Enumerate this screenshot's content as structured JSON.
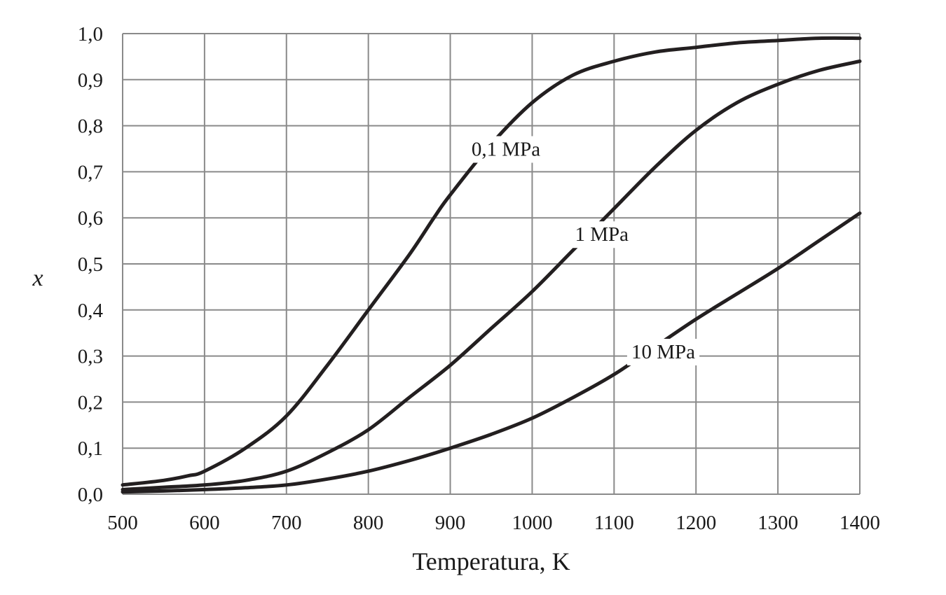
{
  "chart_data": {
    "type": "line",
    "title": "",
    "xlabel": "Temperatura, K",
    "ylabel": "x",
    "xlim": [
      500,
      1400
    ],
    "ylim": [
      0,
      1
    ],
    "grid": true,
    "legend": "none",
    "x_ticks": [
      500,
      600,
      700,
      800,
      900,
      1000,
      1100,
      1200,
      1300,
      1400
    ],
    "x_tick_labels": [
      "500",
      "600",
      "700",
      "800",
      "900",
      "1000",
      "1100",
      "1200",
      "1300",
      "1400"
    ],
    "y_ticks": [
      0,
      0.1,
      0.2,
      0.3,
      0.4,
      0.5,
      0.6,
      0.7,
      0.8,
      0.9,
      1.0
    ],
    "y_tick_labels": [
      "0,0",
      "0,1",
      "0,2",
      "0,3",
      "0,4",
      "0,5",
      "0,6",
      "0,7",
      "0,8",
      "0,9",
      "1,0"
    ],
    "line_color": "#231f20",
    "series": [
      {
        "name": "0,1 MPa",
        "label_at": [
          968,
          0.75
        ],
        "x": [
          500,
          550,
          580,
          600,
          650,
          700,
          750,
          800,
          850,
          880,
          900,
          950,
          1000,
          1050,
          1100,
          1150,
          1200,
          1250,
          1300,
          1350,
          1400
        ],
        "y": [
          0.02,
          0.03,
          0.04,
          0.05,
          0.1,
          0.17,
          0.28,
          0.4,
          0.52,
          0.6,
          0.65,
          0.76,
          0.85,
          0.91,
          0.94,
          0.96,
          0.97,
          0.98,
          0.985,
          0.99,
          0.99
        ]
      },
      {
        "name": "1 MPa",
        "label_at": [
          1085,
          0.565
        ],
        "x": [
          500,
          550,
          600,
          650,
          700,
          750,
          800,
          850,
          900,
          950,
          1000,
          1050,
          1100,
          1150,
          1200,
          1250,
          1300,
          1350,
          1400
        ],
        "y": [
          0.01,
          0.015,
          0.02,
          0.03,
          0.05,
          0.09,
          0.14,
          0.21,
          0.28,
          0.36,
          0.44,
          0.53,
          0.62,
          0.71,
          0.79,
          0.85,
          0.89,
          0.92,
          0.94
        ]
      },
      {
        "name": "10 MPa",
        "label_at": [
          1160,
          0.31
        ],
        "x": [
          500,
          550,
          600,
          650,
          700,
          750,
          800,
          850,
          900,
          950,
          1000,
          1050,
          1100,
          1150,
          1200,
          1250,
          1300,
          1350,
          1400
        ],
        "y": [
          0.005,
          0.007,
          0.01,
          0.014,
          0.02,
          0.033,
          0.05,
          0.073,
          0.1,
          0.13,
          0.165,
          0.21,
          0.26,
          0.32,
          0.38,
          0.435,
          0.49,
          0.55,
          0.61
        ]
      }
    ]
  }
}
